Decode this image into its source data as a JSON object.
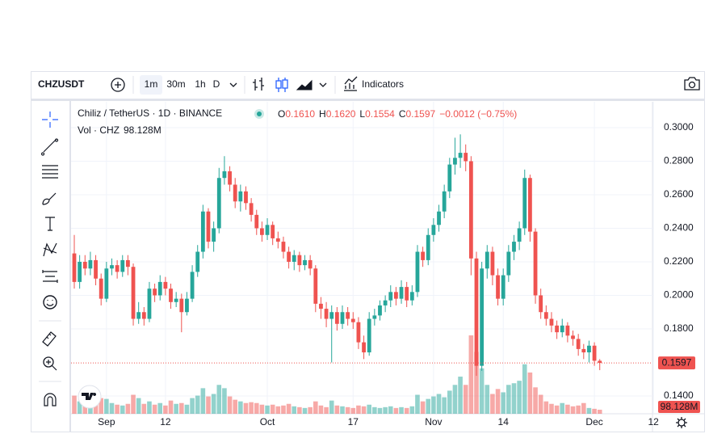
{
  "toolbar": {
    "symbol": "CHZUSDT",
    "intervals": [
      "1m",
      "30m",
      "1h",
      "D"
    ],
    "indicators": "Indicators"
  },
  "chart_data": {
    "type": "candlestick",
    "title": "Chiliz / TetherUS · 1D · BINANCE",
    "ohlc_legend": [
      {
        "key": "O",
        "value": "0.1610"
      },
      {
        "key": "H",
        "value": "0.1620"
      },
      {
        "key": "L",
        "value": "0.1554"
      },
      {
        "key": "C",
        "value": "0.1597"
      }
    ],
    "change_label": "−0.0012 (−0.75%)",
    "volume_name": "Vol · CHZ",
    "volume_value_label": "98.128M",
    "up_color": "#26a69a",
    "down_color": "#ef5350",
    "grid": true,
    "ylim": [
      0.1294,
      0.3154
    ],
    "yticks": [
      {
        "value": 0.3,
        "label": "0.3000"
      },
      {
        "value": 0.28,
        "label": "0.2800"
      },
      {
        "value": 0.26,
        "label": "0.2600"
      },
      {
        "value": 0.24,
        "label": "0.2400"
      },
      {
        "value": 0.22,
        "label": "0.2200"
      },
      {
        "value": 0.2,
        "label": "0.2000"
      },
      {
        "value": 0.18,
        "label": "0.1800"
      },
      {
        "value": 0.14,
        "label": "0.1400"
      }
    ],
    "categories": [
      null,
      null,
      null,
      null,
      null,
      null,
      "Sep",
      null,
      null,
      null,
      null,
      null,
      null,
      null,
      null,
      null,
      null,
      "12",
      null,
      null,
      null,
      null,
      null,
      null,
      null,
      null,
      null,
      null,
      null,
      null,
      null,
      null,
      null,
      null,
      null,
      null,
      "Oct",
      null,
      null,
      null,
      null,
      null,
      null,
      null,
      null,
      null,
      null,
      null,
      null,
      null,
      null,
      null,
      "17",
      null,
      null,
      null,
      null,
      null,
      null,
      null,
      null,
      null,
      null,
      null,
      null,
      null,
      null,
      "Nov",
      null,
      null,
      null,
      null,
      null,
      null,
      null,
      null,
      null,
      null,
      null,
      null,
      "14",
      null,
      null,
      null,
      null,
      null,
      null,
      null,
      null,
      null,
      null,
      null,
      null,
      null,
      null,
      null,
      null,
      "Dec",
      null,
      null,
      null,
      null,
      null,
      null,
      null,
      null,
      null,
      null,
      "12"
    ],
    "open": [
      0.225,
      0.208,
      0.22,
      0.216,
      0.221,
      0.21,
      0.198,
      0.216,
      0.218,
      0.214,
      0.221,
      0.217,
      0.186,
      0.19,
      0.186,
      0.204,
      0.2,
      0.208,
      0.204,
      0.196,
      0.198,
      0.19,
      0.198,
      0.214,
      0.226,
      0.25,
      0.232,
      0.24,
      0.27,
      0.274,
      0.266,
      0.256,
      0.262,
      0.255,
      0.248,
      0.24,
      0.236,
      0.242,
      0.234,
      0.232,
      0.226,
      0.22,
      0.224,
      0.218,
      0.221,
      0.216,
      0.195,
      0.192,
      0.186,
      0.19,
      0.183,
      0.19,
      0.186,
      0.184,
      0.172,
      0.166,
      0.186,
      0.188,
      0.194,
      0.197,
      0.202,
      0.198,
      0.205,
      0.197,
      0.202,
      0.226,
      0.221,
      0.236,
      0.242,
      0.25,
      0.262,
      0.278,
      0.282,
      0.285,
      0.28,
      0.222,
      0.158,
      0.216,
      0.226,
      0.212,
      0.198,
      0.212,
      0.226,
      0.232,
      0.24,
      0.27,
      0.238,
      0.2,
      0.19,
      0.186,
      0.182,
      0.178,
      0.182,
      0.176,
      0.174,
      0.168,
      0.166,
      0.17,
      0.161,
      null,
      null,
      null,
      null,
      null,
      null,
      null,
      null,
      null,
      null
    ],
    "high": [
      0.236,
      0.224,
      0.224,
      0.226,
      0.224,
      0.213,
      0.22,
      0.222,
      0.221,
      0.224,
      0.224,
      0.219,
      0.196,
      0.193,
      0.208,
      0.207,
      0.212,
      0.211,
      0.207,
      0.202,
      0.201,
      0.202,
      0.218,
      0.23,
      0.254,
      0.252,
      0.244,
      0.276,
      0.283,
      0.277,
      0.27,
      0.266,
      0.265,
      0.258,
      0.251,
      0.244,
      0.246,
      0.244,
      0.238,
      0.235,
      0.229,
      0.227,
      0.226,
      0.224,
      0.224,
      0.218,
      0.199,
      0.196,
      0.194,
      0.193,
      0.194,
      0.193,
      0.19,
      0.187,
      0.176,
      0.19,
      0.192,
      0.197,
      0.2,
      0.206,
      0.205,
      0.209,
      0.208,
      0.206,
      0.23,
      0.229,
      0.24,
      0.246,
      0.254,
      0.266,
      0.282,
      0.294,
      0.296,
      0.29,
      0.283,
      0.226,
      0.22,
      0.23,
      0.229,
      0.216,
      0.216,
      0.23,
      0.236,
      0.244,
      0.275,
      0.272,
      0.24,
      0.204,
      0.194,
      0.19,
      0.185,
      0.186,
      0.184,
      0.179,
      0.177,
      0.171,
      0.173,
      0.172,
      0.162,
      null,
      null,
      null,
      null,
      null,
      null,
      null,
      null,
      null,
      null
    ],
    "low": [
      0.204,
      0.204,
      0.212,
      0.212,
      0.206,
      0.194,
      0.196,
      0.212,
      0.21,
      0.211,
      0.212,
      0.182,
      0.183,
      0.182,
      0.184,
      0.196,
      0.197,
      0.2,
      0.192,
      0.193,
      0.178,
      0.188,
      0.196,
      0.211,
      0.222,
      0.228,
      0.226,
      0.237,
      0.266,
      0.262,
      0.252,
      0.25,
      0.251,
      0.244,
      0.236,
      0.232,
      0.233,
      0.23,
      0.228,
      0.222,
      0.216,
      0.215,
      0.214,
      0.215,
      0.212,
      0.19,
      0.186,
      0.181,
      0.16,
      0.179,
      0.18,
      0.182,
      0.18,
      0.168,
      0.162,
      0.164,
      0.182,
      0.185,
      0.19,
      0.193,
      0.194,
      0.195,
      0.193,
      0.194,
      0.199,
      0.217,
      0.218,
      0.232,
      0.238,
      0.246,
      0.258,
      0.272,
      0.276,
      0.274,
      0.212,
      0.152,
      0.155,
      0.21,
      0.206,
      0.194,
      0.194,
      0.208,
      0.221,
      0.227,
      0.236,
      0.232,
      0.195,
      0.186,
      0.182,
      0.178,
      0.174,
      0.175,
      0.172,
      0.17,
      0.164,
      0.162,
      0.16,
      0.158,
      0.1554,
      null,
      null,
      null,
      null,
      null,
      null,
      null,
      null,
      null,
      null
    ],
    "close": [
      0.208,
      0.22,
      0.216,
      0.221,
      0.21,
      0.198,
      0.216,
      0.218,
      0.214,
      0.221,
      0.217,
      0.186,
      0.19,
      0.186,
      0.204,
      0.2,
      0.208,
      0.204,
      0.196,
      0.198,
      0.19,
      0.198,
      0.214,
      0.226,
      0.25,
      0.232,
      0.24,
      0.27,
      0.274,
      0.266,
      0.256,
      0.262,
      0.255,
      0.248,
      0.24,
      0.236,
      0.242,
      0.234,
      0.232,
      0.226,
      0.22,
      0.224,
      0.218,
      0.221,
      0.216,
      0.195,
      0.192,
      0.186,
      0.19,
      0.183,
      0.19,
      0.186,
      0.184,
      0.172,
      0.166,
      0.186,
      0.188,
      0.194,
      0.197,
      0.202,
      0.198,
      0.205,
      0.197,
      0.202,
      0.226,
      0.221,
      0.236,
      0.242,
      0.25,
      0.262,
      0.278,
      0.282,
      0.285,
      0.28,
      0.222,
      0.158,
      0.216,
      0.226,
      0.212,
      0.198,
      0.212,
      0.226,
      0.232,
      0.24,
      0.27,
      0.238,
      0.2,
      0.19,
      0.186,
      0.182,
      0.178,
      0.182,
      0.176,
      0.174,
      0.168,
      0.166,
      0.17,
      0.161,
      0.1597,
      null,
      null,
      null,
      null,
      null,
      null,
      null,
      null,
      null,
      null
    ],
    "volume": [
      440,
      300,
      240,
      200,
      280,
      380,
      360,
      260,
      220,
      200,
      240,
      460,
      380,
      240,
      300,
      220,
      260,
      200,
      320,
      240,
      260,
      220,
      380,
      440,
      620,
      420,
      480,
      700,
      620,
      420,
      340,
      300,
      260,
      280,
      260,
      220,
      200,
      220,
      180,
      200,
      240,
      180,
      160,
      140,
      160,
      300,
      200,
      160,
      320,
      200,
      180,
      160,
      140,
      200,
      180,
      220,
      160,
      140,
      160,
      180,
      140,
      160,
      140,
      180,
      460,
      300,
      360,
      420,
      480,
      400,
      560,
      700,
      900,
      700,
      1900,
      1500,
      1100,
      700,
      480,
      600,
      520,
      700,
      740,
      800,
      1200,
      1000,
      640,
      460,
      300,
      240,
      200,
      260,
      220,
      180,
      200,
      260,
      140,
      120,
      98.128,
      null,
      null,
      null,
      null,
      null,
      null,
      null,
      null,
      null,
      null
    ]
  }
}
